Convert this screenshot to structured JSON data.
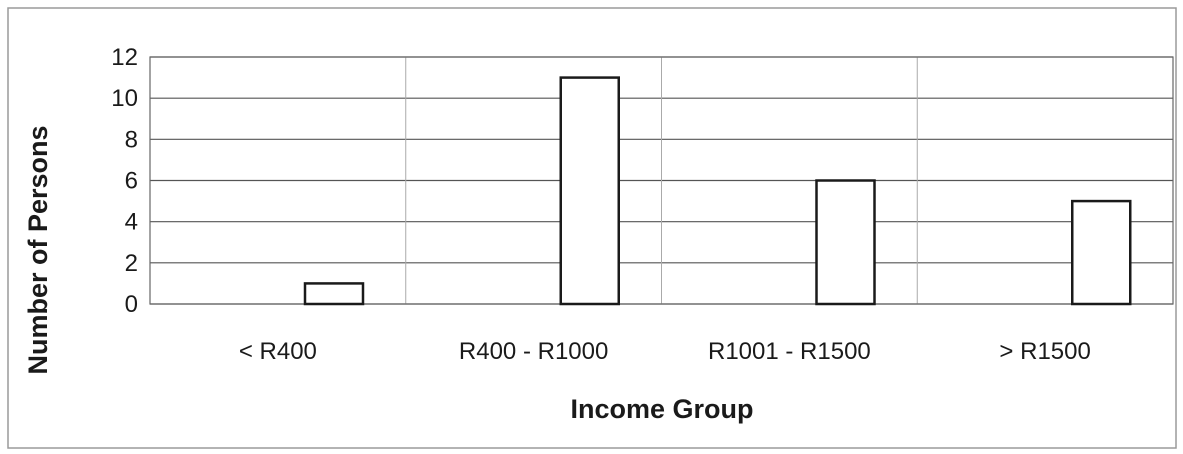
{
  "chart_data": {
    "type": "bar",
    "title": "",
    "xlabel": "Income Group",
    "ylabel": "Number of Persons",
    "categories": [
      "< R400",
      "R400 - R1000",
      "R1001 - R1500",
      "> R1500"
    ],
    "series": [
      {
        "values": [
          1,
          11,
          6,
          5
        ]
      }
    ],
    "ylim": [
      0,
      12
    ],
    "yticks": [
      "0",
      "2",
      "4",
      "6",
      "8",
      "10",
      "12"
    ],
    "grid": true,
    "legend": "none",
    "colors": {
      "bar_fill": "#ffffff",
      "bar_stroke": "#1a1a1a",
      "grid": "#555555",
      "frame": "#666666"
    }
  }
}
